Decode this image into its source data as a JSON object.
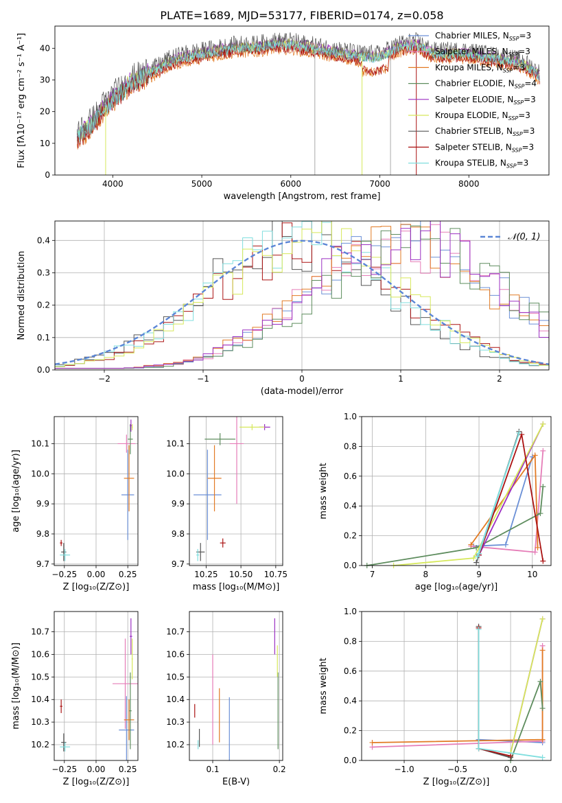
{
  "figure": {
    "title": "PLATE=1689, MJD=53177, FIBERID=0174, z=0.058"
  },
  "colors": {
    "Chabrier MILES": "#6a8fd6",
    "Salpeter MILES": "#e57cb7",
    "Kroupa MILES": "#e27a23",
    "Chabrier ELODIE": "#5d8c5d",
    "Salpeter ELODIE": "#9b2fc2",
    "Kroupa ELODIE": "#d6e85a",
    "Chabrier STELIB": "#555555",
    "Salpeter STELIB": "#aa1111",
    "Kroupa STELIB": "#7fdede",
    "normal": "#5b86d6",
    "grid": "#b0b0b0"
  },
  "chart_data": [
    {
      "id": "spectrum",
      "type": "line",
      "xlabel": "wavelength [Angstrom, rest frame]",
      "ylabel": "Flux [fλ10⁻¹⁷ erg cm⁻² s⁻¹ A⁻¹]",
      "xlim": [
        3350,
        8900
      ],
      "ylim": [
        0,
        47
      ],
      "xticks": [
        4000,
        5000,
        6000,
        7000,
        8000
      ],
      "yticks": [
        0,
        10,
        20,
        30,
        40
      ],
      "grid": false,
      "legend_position": "upper-right",
      "legend": [
        {
          "label": "Chabrier MILES, N",
          "sub": "SSP",
          "suffix": "=3",
          "color": "#6a8fd6"
        },
        {
          "label": "Salpeter MILES, N",
          "sub": "SSP",
          "suffix": "=3",
          "color": "#e57cb7"
        },
        {
          "label": "Kroupa MILES, N",
          "sub": "SSP",
          "suffix": "=3",
          "color": "#e27a23"
        },
        {
          "label": "Chabrier ELODIE, N",
          "sub": "SSP",
          "suffix": "=4",
          "color": "#5d8c5d"
        },
        {
          "label": "Salpeter ELODIE, N",
          "sub": "SSP",
          "suffix": "=3",
          "color": "#9b2fc2"
        },
        {
          "label": "Kroupa ELODIE, N",
          "sub": "SSP",
          "suffix": "=3",
          "color": "#d6e85a"
        },
        {
          "label": "Chabrier STELIB, N",
          "sub": "SSP",
          "suffix": "=3",
          "color": "#555555"
        },
        {
          "label": "Salpeter STELIB, N",
          "sub": "SSP",
          "suffix": "=3",
          "color": "#aa1111"
        },
        {
          "label": "Kroupa STELIB, N",
          "sub": "SSP",
          "suffix": "=3",
          "color": "#7fdede"
        }
      ],
      "continuum": {
        "wavelength": [
          3600,
          3700,
          3800,
          3900,
          3950,
          4000,
          4100,
          4200,
          4300,
          4400,
          4500,
          4600,
          4800,
          5000,
          5200,
          5400,
          5600,
          5800,
          6000,
          6200,
          6400,
          6600,
          6800,
          7000,
          7200,
          7400,
          7600,
          7800,
          8000,
          8200,
          8400,
          8600,
          8800
        ],
        "flux": [
          12,
          14,
          17,
          21,
          22,
          24,
          26,
          29,
          30,
          32,
          33,
          35,
          37,
          38,
          39,
          40,
          40,
          41,
          41,
          40,
          39,
          38,
          37,
          37,
          40,
          41,
          38,
          38,
          38,
          37,
          36,
          35,
          31
        ]
      },
      "series_offsets": [
        0,
        0.5,
        -1.5,
        0,
        0.8,
        0.5,
        1.5,
        -1,
        0
      ],
      "dropouts": [
        {
          "wavelength": 3920,
          "color": "#d6e85a"
        },
        {
          "wavelength": 6270,
          "color": "#aaaaaa"
        },
        {
          "wavelength": 6800,
          "color": "#d6e85a"
        },
        {
          "wavelength": 7120,
          "color": "#aaaaaa"
        },
        {
          "wavelength": 7410,
          "color": "#aa1111"
        }
      ]
    },
    {
      "id": "residual-histogram",
      "type": "histogram",
      "xlabel": "(data-model)/error",
      "ylabel": "Normed distribution",
      "xlim": [
        -2.5,
        2.5
      ],
      "ylim": [
        0,
        0.46
      ],
      "xticks": [
        -2,
        -1,
        0,
        1,
        2
      ],
      "yticks": [
        0.0,
        0.1,
        0.2,
        0.3,
        0.4
      ],
      "grid": true,
      "legend_position": "upper-right",
      "legend_label": "𝒩(0, 1)",
      "normal": {
        "mean": 0,
        "sigma": 1
      },
      "bin_width": 0.1,
      "group_a": [
        "Chabrier STELIB",
        "Salpeter STELIB",
        "Kroupa STELIB",
        "Kroupa ELODIE"
      ],
      "group_b": [
        "Chabrier MILES",
        "Salpeter MILES",
        "Kroupa MILES",
        "Chabrier ELODIE",
        "Salpeter ELODIE"
      ],
      "group_a_center": 0.0,
      "group_a_sigma": 0.95,
      "group_b_center": 1.05,
      "group_b_sigma": 0.95
    },
    {
      "id": "age-vs-Z",
      "type": "errorbar",
      "xlabel": "Z [log₁₀(Z/Z⊙)]",
      "ylabel": "age  [log₁₀(age/yr)]",
      "xlim": [
        -0.33,
        0.33
      ],
      "ylim": [
        9.695,
        10.19
      ],
      "xticks": [
        -0.25,
        0.0,
        0.25
      ],
      "xticklabels": [
        "−0.25",
        "0.00",
        "0.25"
      ],
      "yticks": [
        9.7,
        9.8,
        9.9,
        10.0,
        10.1
      ],
      "grid": true,
      "points": [
        {
          "x": 0.25,
          "y": 9.93,
          "xerr": 0.05,
          "yerr": 0.15,
          "color": "#6a8fd6"
        },
        {
          "x": 0.24,
          "y": 10.1,
          "xerr": 0.07,
          "yerr": 0.03,
          "color": "#e57cb7"
        },
        {
          "x": 0.26,
          "y": 9.985,
          "xerr": 0.04,
          "yerr": 0.11,
          "color": "#e27a23"
        },
        {
          "x": 0.27,
          "y": 10.115,
          "xerr": 0.02,
          "yerr": 0.05,
          "color": "#5d8c5d"
        },
        {
          "x": 0.275,
          "y": 10.16,
          "xerr": 0.01,
          "yerr": 0.02,
          "color": "#9b2fc2"
        },
        {
          "x": 0.285,
          "y": 10.155,
          "xerr": 0.005,
          "yerr": 0.01,
          "color": "#d6e85a"
        },
        {
          "x": -0.255,
          "y": 9.74,
          "xerr": 0.02,
          "yerr": 0.03,
          "color": "#555555"
        },
        {
          "x": -0.275,
          "y": 9.77,
          "xerr": 0.01,
          "yerr": 0.01,
          "color": "#aa1111"
        },
        {
          "x": -0.245,
          "y": 9.73,
          "xerr": 0.04,
          "yerr": 0.02,
          "color": "#7fdede"
        }
      ]
    },
    {
      "id": "age-vs-mass",
      "type": "errorbar",
      "xlabel": "mass [log₁₀(M/M⊙)]",
      "ylabel": "",
      "xlim": [
        10.13,
        10.8
      ],
      "ylim": [
        9.695,
        10.19
      ],
      "xticks": [
        10.25,
        10.5,
        10.75
      ],
      "xticklabels": [
        "10.25",
        "10.50",
        "10.75"
      ],
      "yticks": [
        9.7,
        9.8,
        9.9,
        10.0,
        10.1
      ],
      "grid": true,
      "points": [
        {
          "x": 10.26,
          "y": 9.93,
          "xerr": 0.1,
          "yerr": 0.15,
          "color": "#6a8fd6"
        },
        {
          "x": 10.47,
          "y": 10.1,
          "xerr": 0.05,
          "yerr": 0.2,
          "color": "#e57cb7"
        },
        {
          "x": 10.31,
          "y": 9.985,
          "xerr": 0.05,
          "yerr": 0.11,
          "color": "#e27a23"
        },
        {
          "x": 10.35,
          "y": 10.115,
          "xerr": 0.11,
          "yerr": 0.02,
          "color": "#5d8c5d"
        },
        {
          "x": 10.67,
          "y": 10.155,
          "xerr": 0.04,
          "yerr": 0.01,
          "color": "#9b2fc2"
        },
        {
          "x": 10.58,
          "y": 10.155,
          "xerr": 0.09,
          "yerr": 0.01,
          "color": "#d6e85a"
        },
        {
          "x": 10.21,
          "y": 9.74,
          "xerr": 0.03,
          "yerr": 0.03,
          "color": "#555555"
        },
        {
          "x": 10.37,
          "y": 9.77,
          "xerr": 0.02,
          "yerr": 0.015,
          "color": "#aa1111"
        },
        {
          "x": 10.19,
          "y": 9.73,
          "xerr": 0.01,
          "yerr": 0.02,
          "color": "#7fdede"
        }
      ]
    },
    {
      "id": "mass-weight-vs-age",
      "type": "line",
      "xlabel": "age  [log₁₀(age/yr)]",
      "ylabel": "mass weight",
      "xlim": [
        6.8,
        10.35
      ],
      "ylim": [
        0,
        1.0
      ],
      "xticks": [
        7,
        8,
        9,
        10
      ],
      "yticks": [
        0.0,
        0.2,
        0.4,
        0.6,
        0.8,
        1.0
      ],
      "grid": true,
      "series": [
        {
          "name": "Chabrier MILES",
          "color": "#6a8fd6",
          "x": [
            8.9,
            9.5,
            10.0
          ],
          "y": [
            0.13,
            0.14,
            0.73
          ]
        },
        {
          "name": "Salpeter MILES",
          "color": "#e57cb7",
          "x": [
            8.85,
            10.05,
            10.2
          ],
          "y": [
            0.13,
            0.09,
            0.77
          ]
        },
        {
          "name": "Kroupa MILES",
          "color": "#e27a23",
          "x": [
            8.85,
            10.05,
            10.1
          ],
          "y": [
            0.14,
            0.74,
            0.12
          ]
        },
        {
          "name": "Chabrier ELODIE",
          "color": "#5d8c5d",
          "x": [
            6.9,
            8.95,
            10.15,
            10.2
          ],
          "y": [
            0.0,
            0.12,
            0.35,
            0.53
          ]
        },
        {
          "name": "Salpeter ELODIE",
          "color": "#9b2fc2",
          "x": [
            9.0,
            10.2
          ],
          "y": [
            0.07,
            0.95
          ]
        },
        {
          "name": "Kroupa ELODIE",
          "color": "#d6e85a",
          "x": [
            7.4,
            8.9,
            10.2
          ],
          "y": [
            0.0,
            0.05,
            0.95
          ]
        },
        {
          "name": "Chabrier STELIB",
          "color": "#555555",
          "x": [
            9.0,
            9.75,
            8.95
          ],
          "y": [
            0.08,
            0.9,
            0.02
          ]
        },
        {
          "name": "Salpeter STELIB",
          "color": "#aa1111",
          "x": [
            9.0,
            9.8,
            10.2
          ],
          "y": [
            0.07,
            0.88,
            0.03
          ]
        },
        {
          "name": "Kroupa STELIB",
          "color": "#7fdede",
          "x": [
            9.0,
            9.75,
            8.97
          ],
          "y": [
            0.08,
            0.89,
            0.06
          ]
        }
      ]
    },
    {
      "id": "mass-vs-Z",
      "type": "errorbar",
      "xlabel": "Z [log₁₀(Z/Z⊙)]",
      "ylabel": "mass [log₁₀(M/M⊙)]",
      "xlim": [
        -0.33,
        0.33
      ],
      "ylim": [
        10.13,
        10.79
      ],
      "xticks": [
        -0.25,
        0.0,
        0.25
      ],
      "xticklabels": [
        "−0.25",
        "0.00",
        "0.25"
      ],
      "yticks": [
        10.2,
        10.3,
        10.4,
        10.5,
        10.6,
        10.7
      ],
      "grid": true,
      "points": [
        {
          "x": 0.24,
          "y": 10.265,
          "xerr": 0.06,
          "yerr": 0.15,
          "color": "#6a8fd6"
        },
        {
          "x": 0.23,
          "y": 10.47,
          "xerr": 0.1,
          "yerr": 0.2,
          "color": "#e57cb7"
        },
        {
          "x": 0.26,
          "y": 10.31,
          "xerr": 0.04,
          "yerr": 0.09,
          "color": "#e27a23"
        },
        {
          "x": 0.27,
          "y": 10.35,
          "xerr": 0.01,
          "yerr": 0.17,
          "color": "#5d8c5d"
        },
        {
          "x": 0.275,
          "y": 10.68,
          "xerr": 0.01,
          "yerr": 0.08,
          "color": "#9b2fc2"
        },
        {
          "x": 0.285,
          "y": 10.58,
          "xerr": 0.005,
          "yerr": 0.09,
          "color": "#d6e85a"
        },
        {
          "x": -0.255,
          "y": 10.21,
          "xerr": 0.02,
          "yerr": 0.04,
          "color": "#555555"
        },
        {
          "x": -0.275,
          "y": 10.37,
          "xerr": 0.01,
          "yerr": 0.03,
          "color": "#aa1111"
        },
        {
          "x": -0.245,
          "y": 10.19,
          "xerr": 0.04,
          "yerr": 0.02,
          "color": "#7fdede"
        }
      ]
    },
    {
      "id": "mass-vs-EBV",
      "type": "errorbar",
      "xlabel": "E(B-V)",
      "ylabel": "",
      "xlim": [
        0.065,
        0.205
      ],
      "ylim": [
        10.13,
        10.79
      ],
      "xticks": [
        0.1,
        0.2
      ],
      "xticklabels": [
        "0.1",
        "0.2"
      ],
      "yticks": [
        10.2,
        10.3,
        10.4,
        10.5,
        10.6,
        10.7
      ],
      "grid": true,
      "points": [
        {
          "x": 0.125,
          "y": 10.26,
          "xerr": 0.0,
          "yerr": 0.15,
          "color": "#6a8fd6"
        },
        {
          "x": 0.1,
          "y": 10.4,
          "xerr": 0.0,
          "yerr": 0.2,
          "color": "#e57cb7"
        },
        {
          "x": 0.11,
          "y": 10.33,
          "xerr": 0.0,
          "yerr": 0.12,
          "color": "#e27a23"
        },
        {
          "x": 0.198,
          "y": 10.35,
          "xerr": 0.0,
          "yerr": 0.17,
          "color": "#5d8c5d"
        },
        {
          "x": 0.193,
          "y": 10.68,
          "xerr": 0.0,
          "yerr": 0.08,
          "color": "#9b2fc2"
        },
        {
          "x": 0.197,
          "y": 10.57,
          "xerr": 0.0,
          "yerr": 0.07,
          "color": "#d6e85a"
        },
        {
          "x": 0.08,
          "y": 10.23,
          "xerr": 0.0,
          "yerr": 0.04,
          "color": "#555555"
        },
        {
          "x": 0.073,
          "y": 10.35,
          "xerr": 0.0,
          "yerr": 0.03,
          "color": "#aa1111"
        },
        {
          "x": 0.078,
          "y": 10.2,
          "xerr": 0.0,
          "yerr": 0.02,
          "color": "#7fdede"
        }
      ]
    },
    {
      "id": "mass-weight-vs-Z",
      "type": "line",
      "xlabel": "Z [log₁₀(Z/Z⊙)]",
      "ylabel": "mass weight",
      "xlim": [
        -1.4,
        0.38
      ],
      "ylim": [
        0,
        1.0
      ],
      "xticks": [
        -1.0,
        -0.5,
        0.0
      ],
      "xticklabels": [
        "−1.0",
        "−0.5",
        "0.0"
      ],
      "yticks": [
        0.0,
        0.2,
        0.4,
        0.6,
        0.8,
        1.0
      ],
      "grid": true,
      "series": [
        {
          "name": "Chabrier MILES",
          "color": "#6a8fd6",
          "x": [
            -0.3,
            0.3
          ],
          "y": [
            0.14,
            0.12
          ]
        },
        {
          "name": "Salpeter MILES",
          "color": "#e57cb7",
          "x": [
            -1.3,
            0.3,
            0.3
          ],
          "y": [
            0.09,
            0.13,
            0.77
          ]
        },
        {
          "name": "Kroupa MILES",
          "color": "#e27a23",
          "x": [
            -1.3,
            0.3,
            0.3
          ],
          "y": [
            0.12,
            0.14,
            0.74
          ]
        },
        {
          "name": "Chabrier ELODIE",
          "color": "#5d8c5d",
          "x": [
            0.0,
            0.28,
            0.3
          ],
          "y": [
            0.0,
            0.53,
            0.35
          ]
        },
        {
          "name": "Salpeter ELODIE",
          "color": "#9b2fc2",
          "x": [
            0.0,
            0.3
          ],
          "y": [
            0.05,
            0.95
          ]
        },
        {
          "name": "Kroupa ELODIE",
          "color": "#d6e85a",
          "x": [
            0.0,
            0.3
          ],
          "y": [
            0.05,
            0.95
          ]
        },
        {
          "name": "Chabrier STELIB",
          "color": "#555555",
          "x": [
            -0.3,
            -0.3,
            0.0
          ],
          "y": [
            0.9,
            0.08,
            0.02
          ]
        },
        {
          "name": "Salpeter STELIB",
          "color": "#aa1111",
          "x": [
            -0.3,
            -0.3,
            0.0
          ],
          "y": [
            0.89,
            0.08,
            0.03
          ]
        },
        {
          "name": "Kroupa STELIB",
          "color": "#7fdede",
          "x": [
            -0.3,
            -0.3,
            0.3
          ],
          "y": [
            0.88,
            0.08,
            0.02
          ]
        }
      ]
    }
  ]
}
